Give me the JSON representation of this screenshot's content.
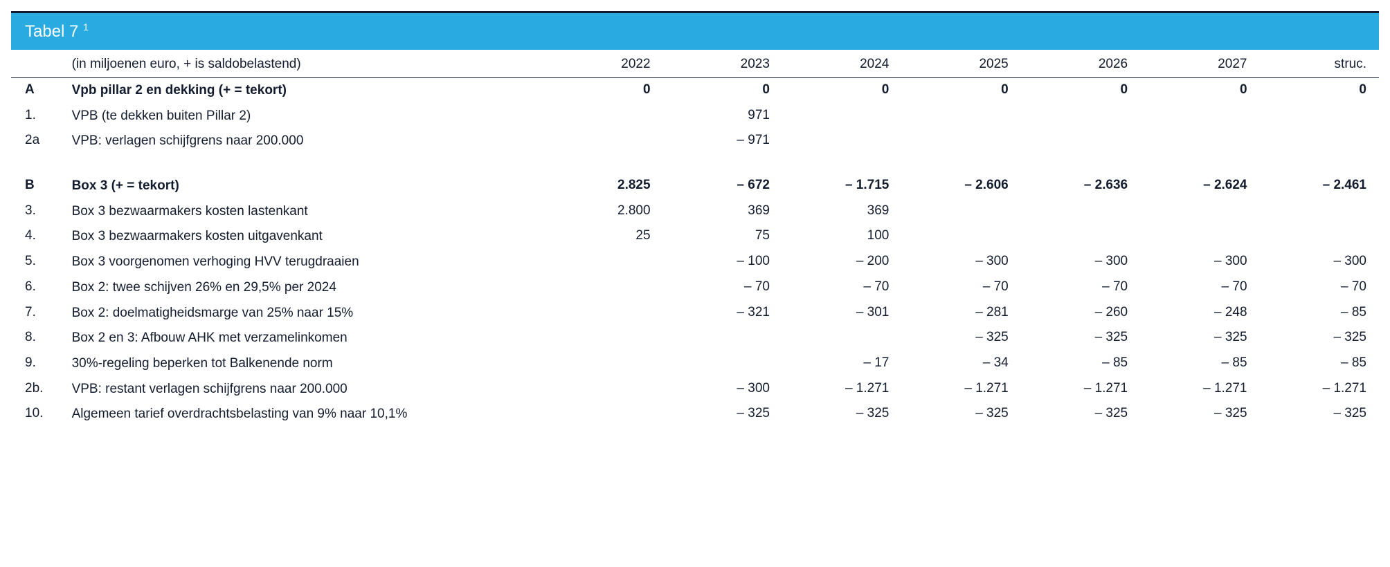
{
  "title": "Tabel 7",
  "title_sup": "1",
  "header": {
    "subtitle": "(in miljoenen euro, + is saldobelastend)",
    "years": [
      "2022",
      "2023",
      "2024",
      "2025",
      "2026",
      "2027",
      "struc."
    ]
  },
  "styling": {
    "title_bg": "#29abe2",
    "title_color": "#ffffff",
    "text_color": "#131c2e",
    "border_color": "#131c2e",
    "font_family": "Arial",
    "title_fontsize": 24,
    "body_fontsize": 19,
    "top_border_width": 3,
    "header_border_width": 1.5
  },
  "rows": [
    {
      "type": "bold",
      "id": "A",
      "label": "Vpb pillar 2 en dekking (+ = tekort)",
      "values": [
        "0",
        "0",
        "0",
        "0",
        "0",
        "0",
        "0"
      ]
    },
    {
      "type": "normal",
      "id": "1.",
      "label": "VPB (te dekken buiten Pillar 2)",
      "values": [
        "",
        "971",
        "",
        "",
        "",
        "",
        ""
      ]
    },
    {
      "type": "normal",
      "id": "2a",
      "label": "VPB: verlagen schijfgrens naar 200.000",
      "values": [
        "",
        "– 971",
        "",
        "",
        "",
        "",
        ""
      ]
    },
    {
      "type": "spacer"
    },
    {
      "type": "bold",
      "id": "B",
      "label": "Box 3 (+ = tekort)",
      "values": [
        "2.825",
        "– 672",
        "– 1.715",
        "– 2.606",
        "– 2.636",
        "– 2.624",
        "– 2.461"
      ]
    },
    {
      "type": "normal",
      "id": "3.",
      "label": "Box 3 bezwaarmakers kosten lastenkant",
      "values": [
        "2.800",
        "369",
        "369",
        "",
        "",
        "",
        ""
      ]
    },
    {
      "type": "normal",
      "id": "4.",
      "label": "Box 3 bezwaarmakers kosten uitgavenkant",
      "values": [
        "25",
        "75",
        "100",
        "",
        "",
        "",
        ""
      ]
    },
    {
      "type": "normal",
      "id": "5.",
      "label": "Box 3 voorgenomen verhoging HVV terugdraaien",
      "values": [
        "",
        "– 100",
        "– 200",
        "– 300",
        "– 300",
        "– 300",
        "– 300"
      ]
    },
    {
      "type": "normal",
      "id": "6.",
      "label": "Box 2: twee schijven 26% en 29,5% per 2024",
      "values": [
        "",
        "– 70",
        "– 70",
        "– 70",
        "– 70",
        "– 70",
        "– 70"
      ]
    },
    {
      "type": "normal",
      "id": "7.",
      "label": "Box 2: doelmatigheidsmarge van 25% naar 15%",
      "values": [
        "",
        "– 321",
        "– 301",
        "– 281",
        "– 260",
        "– 248",
        "– 85"
      ]
    },
    {
      "type": "normal",
      "id": "8.",
      "label": "Box 2 en 3: Afbouw AHK met verzamelinkomen",
      "values": [
        "",
        "",
        "",
        "– 325",
        "– 325",
        "– 325",
        "– 325"
      ]
    },
    {
      "type": "normal",
      "id": "9.",
      "label": "30%-regeling beperken tot Balkenende norm",
      "values": [
        "",
        "",
        "– 17",
        "– 34",
        "– 85",
        "– 85",
        "– 85"
      ]
    },
    {
      "type": "normal",
      "id": "2b.",
      "label": "VPB: restant verlagen schijfgrens naar 200.000",
      "values": [
        "",
        "– 300",
        "– 1.271",
        "– 1.271",
        "– 1.271",
        "– 1.271",
        "– 1.271"
      ]
    },
    {
      "type": "normal",
      "id": "10.",
      "label": "Algemeen tarief overdrachtsbelasting van 9% naar 10,1%",
      "values": [
        "",
        "– 325",
        "– 325",
        "– 325",
        "– 325",
        "– 325",
        "– 325"
      ]
    }
  ]
}
